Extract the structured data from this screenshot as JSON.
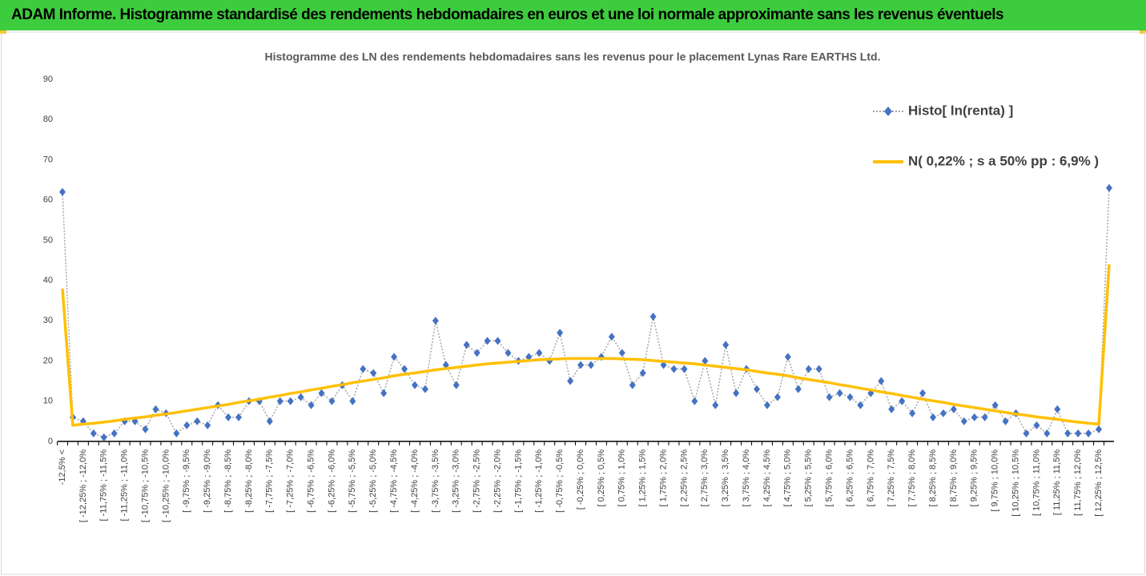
{
  "banner": {
    "title": "ADAM Informe. Histogramme standardisé des rendements hebdomadaires en euros et une loi normale approximante sans les revenus éventuels"
  },
  "chart_data": {
    "type": "line",
    "title": "Histogramme des LN des rendements hebdomadaires sans les revenus pour le placement Lynas Rare EARTHS Ltd.",
    "categories": [
      "-12,5% <",
      null,
      "[ -12,25% ; -12,0%",
      null,
      "[ -11,75% ; -11,5%",
      null,
      "[ -11,25% ; -11,0%",
      null,
      "[ -10,75% ; -10,5%",
      null,
      "[ -10,25% ; -10,0%",
      null,
      "[ -9,75% ; -9,5%",
      null,
      "[ -9,25% ; -9,0%",
      null,
      "[ -8,75% ; -8,5%",
      null,
      "[ -8,25% ; -8,0%",
      null,
      "[ -7,75% ; -7,5%",
      null,
      "[ -7,25% ; -7,0%",
      null,
      "[ -6,75% ; -6,5%",
      null,
      "[ -6,25% ; -6,0%",
      null,
      "[ -5,75% ; -5,5%",
      null,
      "[ -5,25% ; -5,0%",
      null,
      "[ -4,75% ; -4,5%",
      null,
      "[ -4,25% ; -4,0%",
      null,
      "[ -3,75% ; -3,5%",
      null,
      "[ -3,25% ; -3,0%",
      null,
      "[ -2,75% ; -2,5%",
      null,
      "[ -2,25% ; -2,0%",
      null,
      "[ -1,75% ; -1,5%",
      null,
      "[ -1,25% ; -1,0%",
      null,
      "[ -0,75% ; -0,5%",
      null,
      "[ -0,25% ; 0,0%",
      null,
      "[ 0,25% ; 0,5%",
      null,
      "[ 0,75% ; 1,0%",
      null,
      "[ 1,25% ; 1,5%",
      null,
      "[ 1,75% ; 2,0%",
      null,
      "[ 2,25% ; 2,5%",
      null,
      "[ 2,75% ; 3,0%",
      null,
      "[ 3,25% ; 3,5%",
      null,
      "[ 3,75% ; 4,0%",
      null,
      "[ 4,25% ; 4,5%",
      null,
      "[ 4,75% ; 5,0%",
      null,
      "[ 5,25% ; 5,5%",
      null,
      "[ 5,75% ; 6,0%",
      null,
      "[ 6,25% ; 6,5%",
      null,
      "[ 6,75% ; 7,0%",
      null,
      "[ 7,25% ; 7,5%",
      null,
      "[ 7,75% ; 8,0%",
      null,
      "[ 8,25% ; 8,5%",
      null,
      "[ 8,75% ; 9,0%",
      null,
      "[ 9,25% ; 9,5%",
      null,
      "[ 9,75% ; 10,0%",
      null,
      "[ 10,25% ; 10,5%",
      null,
      "[ 10,75% ; 11,0%",
      null,
      "[ 11,25% ; 11,5%",
      null,
      "[ 11,75% ; 12,0%",
      null,
      "[ 12,25% ; 12,5%",
      null
    ],
    "series": [
      {
        "name": "Histo[ ln(renta) ]",
        "color": "#4472c4",
        "line_color": "#a6a6a6",
        "values": [
          62,
          6,
          5,
          2,
          1,
          2,
          5,
          5,
          3,
          8,
          7,
          2,
          4,
          5,
          4,
          9,
          6,
          6,
          10,
          10,
          5,
          10,
          10,
          11,
          9,
          12,
          10,
          14,
          10,
          18,
          17,
          12,
          21,
          18,
          14,
          13,
          30,
          19,
          14,
          24,
          22,
          25,
          25,
          22,
          20,
          21,
          22,
          20,
          27,
          15,
          19,
          19,
          21,
          26,
          22,
          14,
          17,
          31,
          19,
          18,
          18,
          10,
          20,
          9,
          24,
          12,
          18,
          13,
          9,
          11,
          21,
          13,
          18,
          18,
          11,
          12,
          11,
          9,
          12,
          15,
          8,
          10,
          7,
          12,
          6,
          7,
          8,
          5,
          6,
          6,
          9,
          5,
          7,
          2,
          4,
          2,
          8,
          2,
          2,
          2,
          3,
          63
        ]
      },
      {
        "name": "N( 0,22% ; s a 50% pp : 6,9% )",
        "color": "#ffc000",
        "values": [
          38,
          4.0,
          4.3,
          4.5,
          4.8,
          5.1,
          5.5,
          5.8,
          6.1,
          6.5,
          6.8,
          7.2,
          7.6,
          8.0,
          8.4,
          8.8,
          9.2,
          9.7,
          10.1,
          10.5,
          11.0,
          11.4,
          11.9,
          12.3,
          12.8,
          13.2,
          13.7,
          14.1,
          14.6,
          15.0,
          15.4,
          15.8,
          16.3,
          16.7,
          17.0,
          17.4,
          17.8,
          18.1,
          18.4,
          18.7,
          19.0,
          19.3,
          19.5,
          19.7,
          19.9,
          20.1,
          20.3,
          20.4,
          20.5,
          20.6,
          20.6,
          20.6,
          20.6,
          20.6,
          20.5,
          20.4,
          20.3,
          20.1,
          19.9,
          19.7,
          19.5,
          19.3,
          19.0,
          18.7,
          18.4,
          18.1,
          17.8,
          17.4,
          17.0,
          16.7,
          16.3,
          15.8,
          15.4,
          15.0,
          14.6,
          14.1,
          13.7,
          13.2,
          12.8,
          12.3,
          11.9,
          11.4,
          11.0,
          10.5,
          10.1,
          9.7,
          9.2,
          8.8,
          8.4,
          8.0,
          7.6,
          7.2,
          6.8,
          6.5,
          6.1,
          5.8,
          5.5,
          5.1,
          4.8,
          4.5,
          4.3,
          44
        ]
      }
    ],
    "ylim": [
      0,
      90
    ],
    "yticks": [
      0,
      10,
      20,
      30,
      40,
      50,
      60,
      70,
      80,
      90
    ],
    "grid": false,
    "legend": "top-right"
  }
}
